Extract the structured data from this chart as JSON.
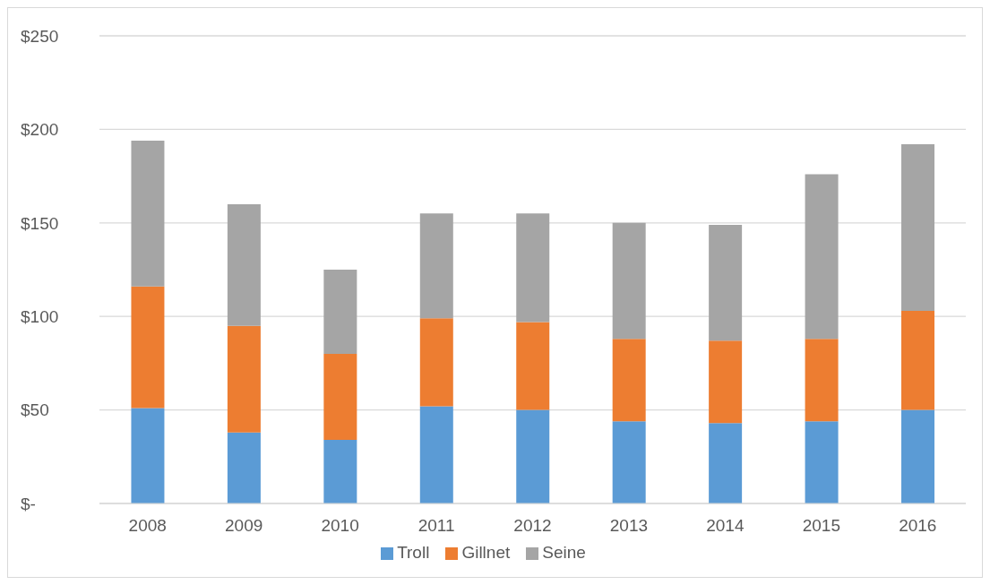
{
  "chart_data": {
    "type": "bar",
    "stacked": true,
    "categories": [
      "2008",
      "2009",
      "2010",
      "2011",
      "2012",
      "2013",
      "2014",
      "2015",
      "2016"
    ],
    "series": [
      {
        "name": "Troll",
        "color": "#5b9bd5",
        "values": [
          51,
          38,
          34,
          52,
          50,
          44,
          43,
          44,
          50
        ]
      },
      {
        "name": "Gillnet",
        "color": "#ed7d31",
        "values": [
          65,
          57,
          46,
          47,
          47,
          44,
          44,
          44,
          53
        ]
      },
      {
        "name": "Seine",
        "color": "#a5a5a5",
        "values": [
          78,
          65,
          45,
          56,
          58,
          62,
          62,
          88,
          89
        ]
      }
    ],
    "ylim": [
      0,
      250
    ],
    "yticks": [
      {
        "value": 0,
        "label": "$-"
      },
      {
        "value": 50,
        "label": "$50"
      },
      {
        "value": 100,
        "label": "$100"
      },
      {
        "value": 150,
        "label": "$150"
      },
      {
        "value": 200,
        "label": "$200"
      },
      {
        "value": 250,
        "label": "$250"
      }
    ],
    "grid": "y",
    "legend": "bottom"
  }
}
